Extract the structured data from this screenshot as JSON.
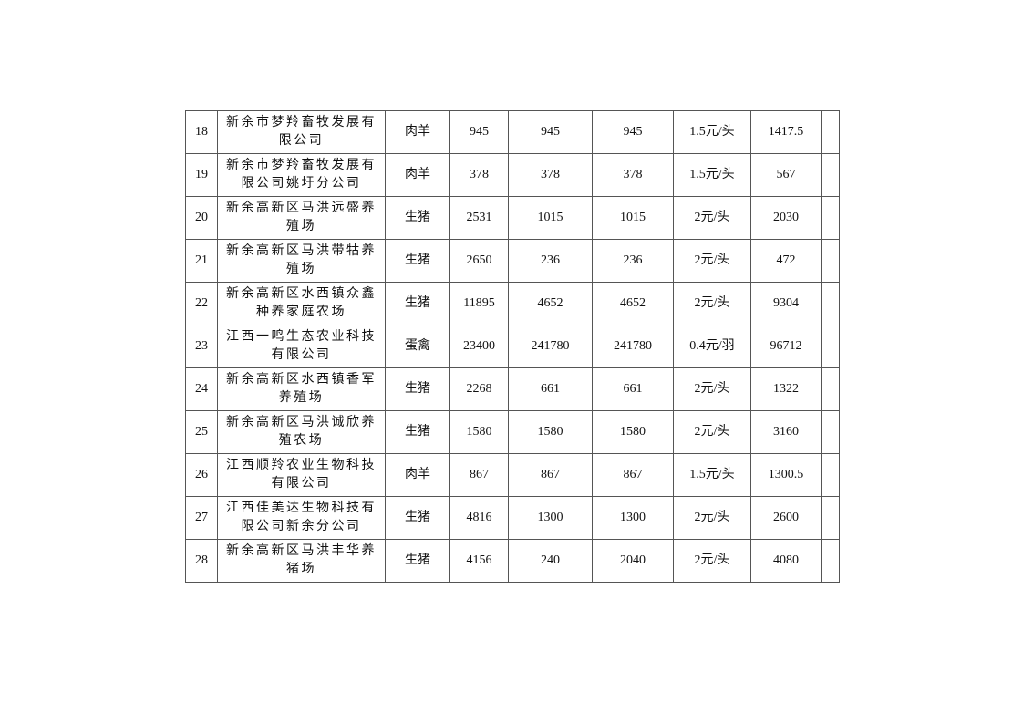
{
  "table": {
    "rows": [
      {
        "no": "18",
        "name": [
          "新余市梦羚畜牧发展有",
          "限公司"
        ],
        "type": "肉羊",
        "c1": "945",
        "c2": "945",
        "c3": "945",
        "rate": "1.5元/头",
        "amount": "1417.5",
        "note": ""
      },
      {
        "no": "19",
        "name": [
          "新余市梦羚畜牧发展有",
          "限公司姚圩分公司"
        ],
        "type": "肉羊",
        "c1": "378",
        "c2": "378",
        "c3": "378",
        "rate": "1.5元/头",
        "amount": "567",
        "note": ""
      },
      {
        "no": "20",
        "name": [
          "新余高新区马洪远盛养",
          "殖场"
        ],
        "type": "生猪",
        "c1": "2531",
        "c2": "1015",
        "c3": "1015",
        "rate": "2元/头",
        "amount": "2030",
        "note": ""
      },
      {
        "no": "21",
        "name": [
          "新余高新区马洪带牯养",
          "殖场"
        ],
        "type": "生猪",
        "c1": "2650",
        "c2": "236",
        "c3": "236",
        "rate": "2元/头",
        "amount": "472",
        "note": ""
      },
      {
        "no": "22",
        "name": [
          "新余高新区水西镇众鑫",
          "种养家庭农场"
        ],
        "type": "生猪",
        "c1": "11895",
        "c2": "4652",
        "c3": "4652",
        "rate": "2元/头",
        "amount": "9304",
        "note": ""
      },
      {
        "no": "23",
        "name": [
          "江西一鸣生态农业科技",
          "有限公司"
        ],
        "type": "蛋禽",
        "c1": "23400",
        "c2": "241780",
        "c3": "241780",
        "rate": "0.4元/羽",
        "amount": "96712",
        "note": ""
      },
      {
        "no": "24",
        "name": [
          "新余高新区水西镇香军",
          "养殖场"
        ],
        "type": "生猪",
        "c1": "2268",
        "c2": "661",
        "c3": "661",
        "rate": "2元/头",
        "amount": "1322",
        "note": ""
      },
      {
        "no": "25",
        "name": [
          "新余高新区马洪诚欣养",
          "殖农场"
        ],
        "type": "生猪",
        "c1": "1580",
        "c2": "1580",
        "c3": "1580",
        "rate": "2元/头",
        "amount": "3160",
        "note": ""
      },
      {
        "no": "26",
        "name": [
          "江西顺羚农业生物科技",
          "有限公司"
        ],
        "type": "肉羊",
        "c1": "867",
        "c2": "867",
        "c3": "867",
        "rate": "1.5元/头",
        "amount": "1300.5",
        "note": ""
      },
      {
        "no": "27",
        "name": [
          "江西佳美达生物科技有",
          "限公司新余分公司"
        ],
        "type": "生猪",
        "c1": "4816",
        "c2": "1300",
        "c3": "1300",
        "rate": "2元/头",
        "amount": "2600",
        "note": ""
      },
      {
        "no": "28",
        "name": [
          "新余高新区马洪丰华养",
          "猪场"
        ],
        "type": "生猪",
        "c1": "4156",
        "c2": "240",
        "c3": "2040",
        "rate": "2元/头",
        "amount": "4080",
        "note": ""
      }
    ]
  }
}
